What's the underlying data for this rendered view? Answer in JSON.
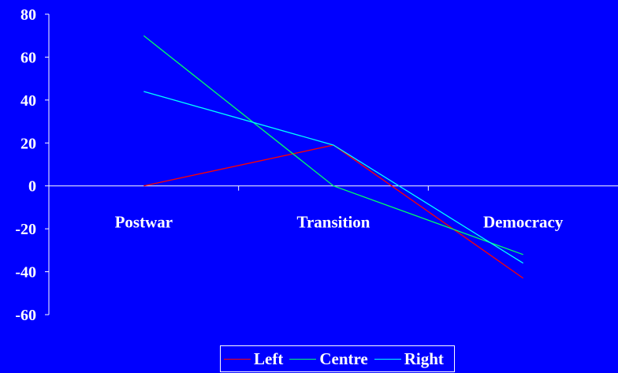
{
  "chart_data": {
    "type": "line",
    "title": "",
    "xlabel": "",
    "ylabel": "",
    "categories": [
      "Postwar",
      "Transition",
      "Democracy"
    ],
    "ylim": [
      -60,
      80
    ],
    "yticks": [
      80,
      60,
      40,
      20,
      0,
      -20,
      -40,
      -60
    ],
    "series": [
      {
        "name": "Left",
        "color": "#FF0000",
        "values": [
          0,
          19,
          -43
        ]
      },
      {
        "name": "Centre",
        "color": "#00FF66",
        "values": [
          70,
          0,
          -32
        ]
      },
      {
        "name": "Right",
        "color": "#00FFFF",
        "values": [
          44,
          19,
          -36
        ]
      }
    ],
    "legend_position": "bottom",
    "grid": false,
    "background_color": "#0000FF",
    "axis_color": "#FFFFFF",
    "text_color": "#FFFFFF"
  }
}
